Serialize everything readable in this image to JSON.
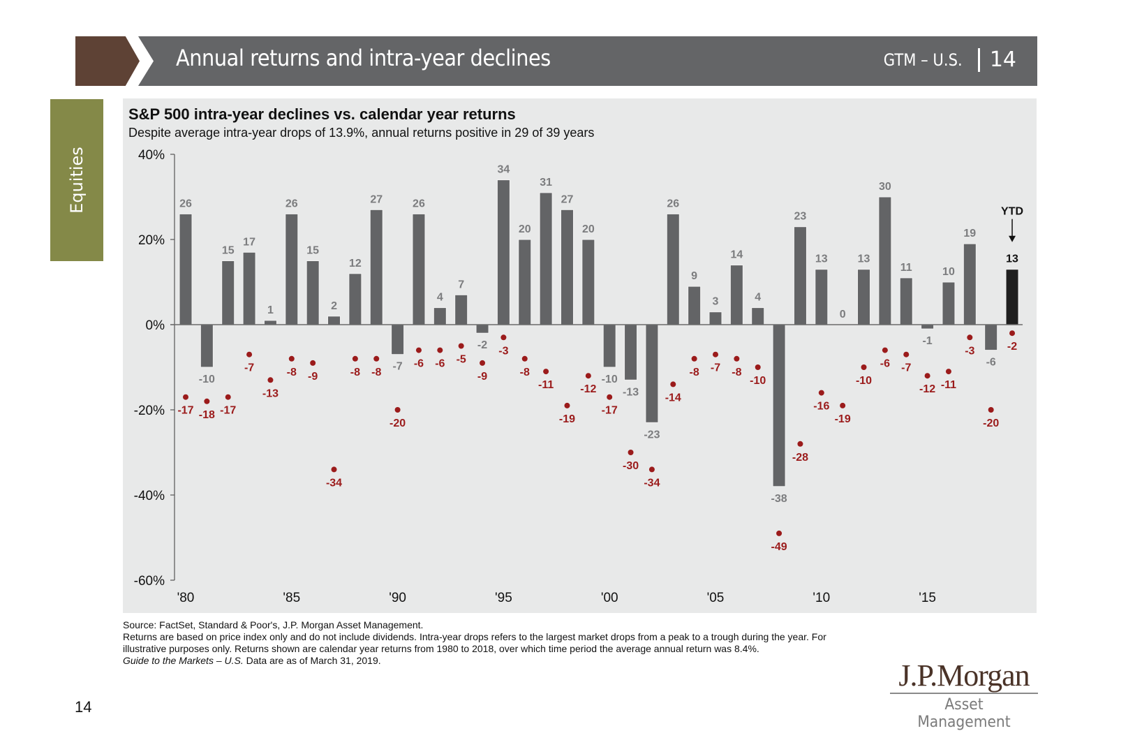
{
  "header": {
    "title": "Annual returns and intra-year declines",
    "section": "GTM – U.S.",
    "page": "14"
  },
  "side_tab": {
    "label": "Equities"
  },
  "colors": {
    "bar": "#636466",
    "ytd_bar": "#1f1f1f",
    "decline_dot": "#9b1b1b",
    "header_bg": "#646567",
    "chevron": "#5e4235",
    "tab": "#848948",
    "panel_bg": "#e8e9e9"
  },
  "chart_data": {
    "type": "bar",
    "title": "S&P 500 intra-year declines vs. calendar year returns",
    "subtitle": "Despite average intra-year drops of 13.9%, annual returns positive in 29 of 39 years",
    "xlabel": "",
    "ylabel": "",
    "ylim": [
      -60,
      40
    ],
    "yticks": [
      40,
      20,
      0,
      -20,
      -40,
      -60
    ],
    "ytick_labels": [
      "40%",
      "20%",
      "0%",
      "-20%",
      "-40%",
      "-60%"
    ],
    "xtick_labels": [
      {
        "label": "'80",
        "year": "1980"
      },
      {
        "label": "'85",
        "year": "1985"
      },
      {
        "label": "'90",
        "year": "1990"
      },
      {
        "label": "'95",
        "year": "1995"
      },
      {
        "label": "'00",
        "year": "2000"
      },
      {
        "label": "'05",
        "year": "2005"
      },
      {
        "label": "'10",
        "year": "2010"
      },
      {
        "label": "'15",
        "year": "2015"
      }
    ],
    "categories": [
      "1980",
      "1981",
      "1982",
      "1983",
      "1984",
      "1985",
      "1986",
      "1987",
      "1988",
      "1989",
      "1990",
      "1991",
      "1992",
      "1993",
      "1994",
      "1995",
      "1996",
      "1997",
      "1998",
      "1999",
      "2000",
      "2001",
      "2002",
      "2003",
      "2004",
      "2005",
      "2006",
      "2007",
      "2008",
      "2009",
      "2010",
      "2011",
      "2012",
      "2013",
      "2014",
      "2015",
      "2016",
      "2017",
      "2018",
      "YTD"
    ],
    "series": [
      {
        "name": "Calendar year return",
        "mark": "bar",
        "values": [
          26,
          -10,
          15,
          17,
          1,
          26,
          15,
          2,
          12,
          27,
          -7,
          26,
          4,
          7,
          -2,
          34,
          20,
          31,
          27,
          20,
          -10,
          -13,
          -23,
          26,
          9,
          3,
          14,
          4,
          -38,
          23,
          13,
          0,
          13,
          30,
          11,
          -1,
          10,
          19,
          -6,
          13
        ]
      },
      {
        "name": "Intra-year decline",
        "mark": "dot",
        "values": [
          -17,
          -18,
          -17,
          -7,
          -13,
          -8,
          -9,
          -34,
          -8,
          -8,
          -20,
          -6,
          -6,
          -5,
          -9,
          -3,
          -8,
          -11,
          -19,
          -12,
          -17,
          -30,
          -34,
          -14,
          -8,
          -7,
          -8,
          -10,
          -49,
          -28,
          -16,
          -19,
          -10,
          -6,
          -7,
          -12,
          -11,
          -3,
          -20,
          -2
        ]
      }
    ],
    "annotations": [
      {
        "text": "YTD",
        "category": "YTD",
        "arrow": "down"
      }
    ],
    "grid": false,
    "legend": "none"
  },
  "footnotes": {
    "source": "Source: FactSet, Standard & Poor's, J.P. Morgan Asset Management.",
    "note": "Returns are based on price index only and do not include dividends. Intra-year drops refers to the largest market drops from a peak to a trough during the year. For illustrative purposes only. Returns shown are calendar year returns from 1980 to 2018, over which time period the average annual return was 8.4%.",
    "guide_italic": "Guide to the Markets – U.S.",
    "as_of": " Data are as of March 31, 2019."
  },
  "page_number": "14",
  "logo": {
    "name": "J.P.Morgan",
    "sub": "Asset Management"
  }
}
